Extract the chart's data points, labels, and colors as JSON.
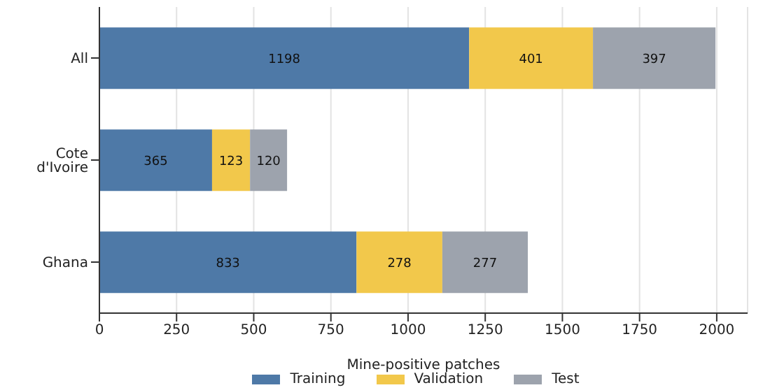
{
  "chart_data": {
    "type": "bar",
    "orientation": "horizontal",
    "stacked": true,
    "xlabel": "Mine-positive patches",
    "categories": [
      "All",
      "Cote d'Ivoire",
      "Ghana"
    ],
    "series": [
      {
        "name": "Training",
        "color": "#4e79a7",
        "values": [
          1198,
          365,
          833
        ]
      },
      {
        "name": "Validation",
        "color": "#f2c84b",
        "values": [
          401,
          123,
          278
        ]
      },
      {
        "name": "Test",
        "color": "#9da3ad",
        "values": [
          397,
          120,
          277
        ]
      }
    ],
    "xlim": [
      0,
      2100
    ],
    "xticks": [
      0,
      250,
      500,
      750,
      1000,
      1250,
      1500,
      1750,
      2000
    ],
    "grid": "x",
    "legend": "bottom",
    "data_labels": true
  }
}
